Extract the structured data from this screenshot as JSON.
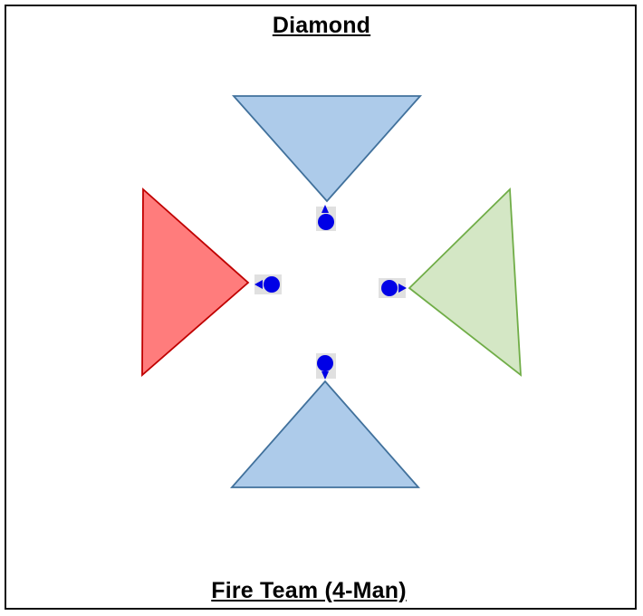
{
  "title": "Diamond",
  "subtitle": "Fire Team (4-Man)",
  "colors": {
    "blue_fill": "#adcbea",
    "blue_stroke": "#41719c",
    "red_fill": "#ff7c7c",
    "red_stroke": "#c00000",
    "green_fill": "#d4e7c5",
    "green_stroke": "#70ad47",
    "soldier": "#0000e6",
    "soldier_bg": "#e0e0e0"
  },
  "sectors": [
    {
      "id": "top",
      "name": "sector-top-triangle",
      "color": "blue"
    },
    {
      "id": "left",
      "name": "sector-left-triangle",
      "color": "red"
    },
    {
      "id": "right",
      "name": "sector-right-triangle",
      "color": "green"
    },
    {
      "id": "bottom",
      "name": "sector-bottom-triangle",
      "color": "blue"
    }
  ],
  "soldiers": [
    {
      "id": "top",
      "facing": "up"
    },
    {
      "id": "left",
      "facing": "left"
    },
    {
      "id": "right",
      "facing": "right"
    },
    {
      "id": "bottom",
      "facing": "down"
    }
  ]
}
